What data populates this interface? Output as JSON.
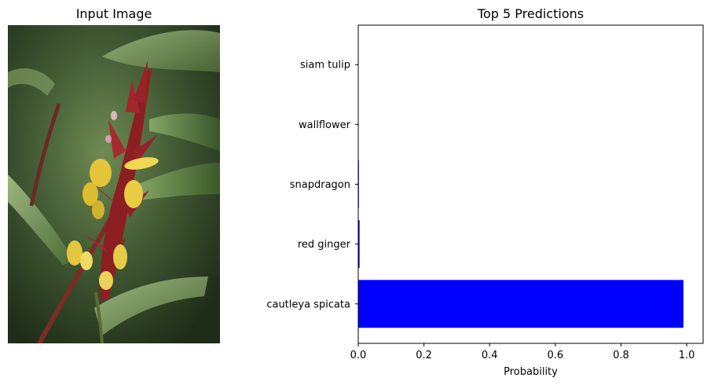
{
  "left_panel": {
    "title": "Input Image"
  },
  "chart_data": {
    "type": "bar",
    "orientation": "horizontal",
    "title": "Top 5 Predictions",
    "xlabel": "Probability",
    "ylabel": "",
    "categories": [
      "cautleya spicata",
      "red ginger",
      "snapdragon",
      "wallflower",
      "siam tulip"
    ],
    "values": [
      0.99,
      0.004,
      0.002,
      0.001,
      0.001
    ],
    "xlim": [
      0,
      1.05
    ],
    "xticks": [
      "0.0",
      "0.2",
      "0.4",
      "0.6",
      "0.8",
      "1.0"
    ],
    "bar_color": "#0000ff",
    "grid": false
  }
}
